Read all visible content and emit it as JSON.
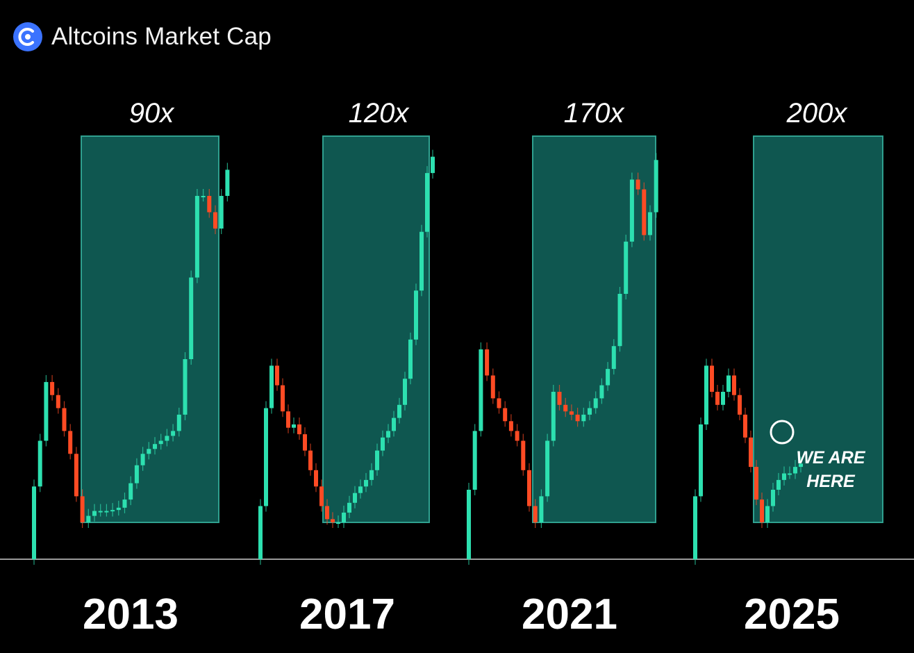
{
  "header": {
    "title": "Altcoins Market Cap",
    "logo_icon": "circular-arrows-logo-icon"
  },
  "colors": {
    "up": "#2de0b0",
    "down": "#ff4b24",
    "box_fill": "#0f5750",
    "box_stroke": "#2fa08f",
    "baseline": "#9a9a9a"
  },
  "annotation": {
    "line1": "WE ARE",
    "line2": "HERE",
    "marker_icon": "circle-marker-icon"
  },
  "chart_data": {
    "type": "candlestick",
    "title": "Altcoins Market Cap",
    "xlabel": "",
    "ylabel": "",
    "y_units": "relative to each cycle's bottom (cycle low = 1)",
    "cycles": [
      {
        "year": "2013",
        "multiplier": "90x",
        "box": "bottom to top of projected rally",
        "path": [
          2.1,
          3.5,
          5.3,
          4.9,
          4.5,
          3.8,
          3.1,
          1.8,
          1.0,
          1.2,
          1.35,
          1.35,
          1.35,
          1.38,
          1.45,
          1.7,
          2.2,
          2.75,
          3.1,
          3.25,
          3.4,
          3.5,
          3.65,
          3.8,
          4.3,
          6.0,
          8.5,
          11.0,
          11.0,
          10.5,
          10.0,
          11.0,
          11.8
        ]
      },
      {
        "year": "2017",
        "multiplier": "120x",
        "box": "bottom to top of projected rally",
        "path": [
          1.5,
          4.5,
          5.8,
          5.2,
          4.4,
          3.9,
          4.0,
          3.7,
          3.2,
          2.6,
          2.1,
          1.5,
          1.1,
          1.0,
          1.0,
          1.3,
          1.6,
          1.9,
          2.1,
          2.3,
          2.6,
          3.2,
          3.6,
          3.8,
          4.2,
          4.6,
          5.4,
          6.6,
          8.1,
          9.9,
          11.7,
          12.2
        ]
      },
      {
        "year": "2021",
        "multiplier": "170x",
        "box": "bottom to top of projected rally",
        "path": [
          2.0,
          3.8,
          6.3,
          5.5,
          4.8,
          4.5,
          4.1,
          3.8,
          3.5,
          2.6,
          1.5,
          1.0,
          1.8,
          3.5,
          5.0,
          4.6,
          4.4,
          4.3,
          4.1,
          4.3,
          4.5,
          4.8,
          5.2,
          5.7,
          6.4,
          8.0,
          9.6,
          11.5,
          11.2,
          9.8,
          10.5,
          12.1
        ]
      },
      {
        "year": "2025",
        "multiplier": "200x",
        "box": "bottom to top of projected rally",
        "path": [
          1.8,
          4.0,
          5.8,
          5.0,
          4.6,
          5.0,
          5.5,
          4.9,
          4.3,
          3.6,
          2.7,
          1.7,
          1.0,
          1.5,
          2.0,
          2.3,
          2.5,
          2.5,
          2.7,
          2.8
        ]
      }
    ]
  }
}
